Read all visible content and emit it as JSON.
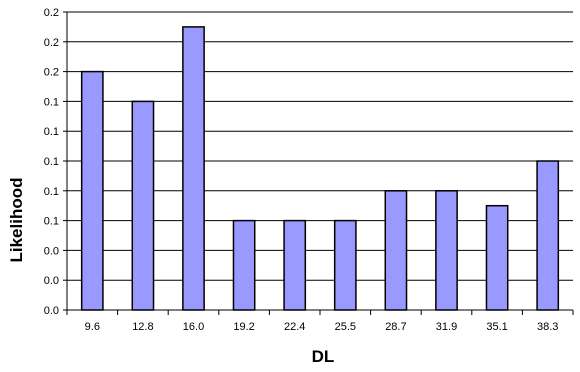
{
  "chart_data": {
    "type": "bar",
    "title": "",
    "xlabel": "DL",
    "ylabel": "Likelihood",
    "categories": [
      "9.6",
      "12.8",
      "16.0",
      "19.2",
      "22.4",
      "25.5",
      "28.7",
      "31.9",
      "35.1",
      "38.3"
    ],
    "values": [
      0.16,
      0.14,
      0.19,
      0.06,
      0.06,
      0.06,
      0.08,
      0.08,
      0.07,
      0.1
    ],
    "ylim": [
      0,
      0.2
    ],
    "ytick_values": [
      0,
      0.02,
      0.04,
      0.06,
      0.08,
      0.1,
      0.12,
      0.14,
      0.16,
      0.18,
      0.2
    ],
    "ytick_labels": [
      "0.0",
      "0.0",
      "0.0",
      "0.1",
      "0.1",
      "0.1",
      "0.1",
      "0.1",
      "0.2",
      "0.2",
      "0.2"
    ],
    "grid": true,
    "legend": "none",
    "bar_color": "#9999ff",
    "bar_edge_color": "#000000"
  }
}
